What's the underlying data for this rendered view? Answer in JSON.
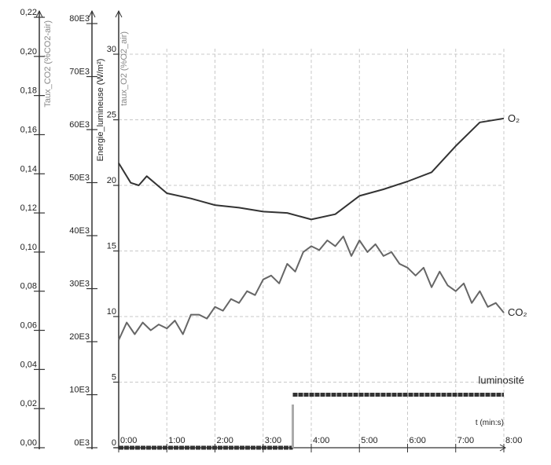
{
  "chart_data": {
    "type": "line",
    "title": "",
    "xlabel": "t (min:s)",
    "x_ticks": [
      "0:00",
      "1:00",
      "2:00",
      "3:00",
      "4:00",
      "5:00",
      "6:00",
      "7:00",
      "8:00"
    ],
    "xlim_seconds": [
      0,
      480
    ],
    "grid": true,
    "axes": [
      {
        "id": "co2",
        "label": "Taux_CO2 (%CO2-air)",
        "ylim": [
          0,
          0.22
        ],
        "ticks": [
          "0,00",
          "0,02",
          "0,04",
          "0,06",
          "0,08",
          "0,10",
          "0,12",
          "0,14",
          "0,16",
          "0,18",
          "0,20",
          "0,22"
        ],
        "tick_values": [
          0,
          0.02,
          0.04,
          0.06,
          0.08,
          0.1,
          0.12,
          0.14,
          0.16,
          0.18,
          0.2,
          0.22
        ]
      },
      {
        "id": "light",
        "label": "Energie_lumineuse (W/m²)",
        "ylim": [
          0,
          80000
        ],
        "ticks": [
          "0E3",
          "10E3",
          "20E3",
          "30E3",
          "40E3",
          "50E3",
          "60E3",
          "70E3",
          "80E3"
        ],
        "tick_values": [
          0,
          10000,
          20000,
          30000,
          40000,
          50000,
          60000,
          70000,
          80000
        ]
      },
      {
        "id": "o2",
        "label": "taux_O2 (%O2_air)",
        "ylim": [
          0,
          30
        ],
        "ticks": [
          "0",
          "5",
          "10",
          "15",
          "20",
          "25",
          "30"
        ],
        "tick_values": [
          0,
          5,
          10,
          15,
          20,
          25,
          30
        ]
      }
    ],
    "series": [
      {
        "name": "O2",
        "label": "O₂",
        "axis": "o2",
        "color": "#333333",
        "x": [
          0,
          15,
          25,
          35,
          60,
          90,
          120,
          150,
          180,
          210,
          240,
          270,
          300,
          330,
          360,
          390,
          420,
          450,
          480
        ],
        "y": [
          21.7,
          20.2,
          20.0,
          20.7,
          19.4,
          19.0,
          18.5,
          18.3,
          18.0,
          17.9,
          17.4,
          17.8,
          19.2,
          19.7,
          20.3,
          21.0,
          23.0,
          24.8,
          25.1
        ]
      },
      {
        "name": "CO2",
        "label": "CO₂",
        "axis": "co2",
        "color": "#666666",
        "x_step_seconds": 10,
        "y": [
          0.055,
          0.064,
          0.058,
          0.064,
          0.06,
          0.063,
          0.061,
          0.065,
          0.058,
          0.068,
          0.068,
          0.066,
          0.072,
          0.07,
          0.076,
          0.074,
          0.08,
          0.078,
          0.086,
          0.088,
          0.084,
          0.094,
          0.09,
          0.1,
          0.103,
          0.101,
          0.106,
          0.103,
          0.108,
          0.098,
          0.106,
          0.1,
          0.104,
          0.098,
          0.1,
          0.094,
          0.092,
          0.088,
          0.092,
          0.082,
          0.09,
          0.083,
          0.08,
          0.084,
          0.074,
          0.08,
          0.072,
          0.074,
          0.069
        ]
      },
      {
        "name": "luminosite",
        "label": "luminosité",
        "axis": "light",
        "color": "#444444",
        "x": [
          0,
          217,
          217,
          480
        ],
        "y": [
          0,
          0,
          10000,
          10000
        ]
      }
    ]
  }
}
